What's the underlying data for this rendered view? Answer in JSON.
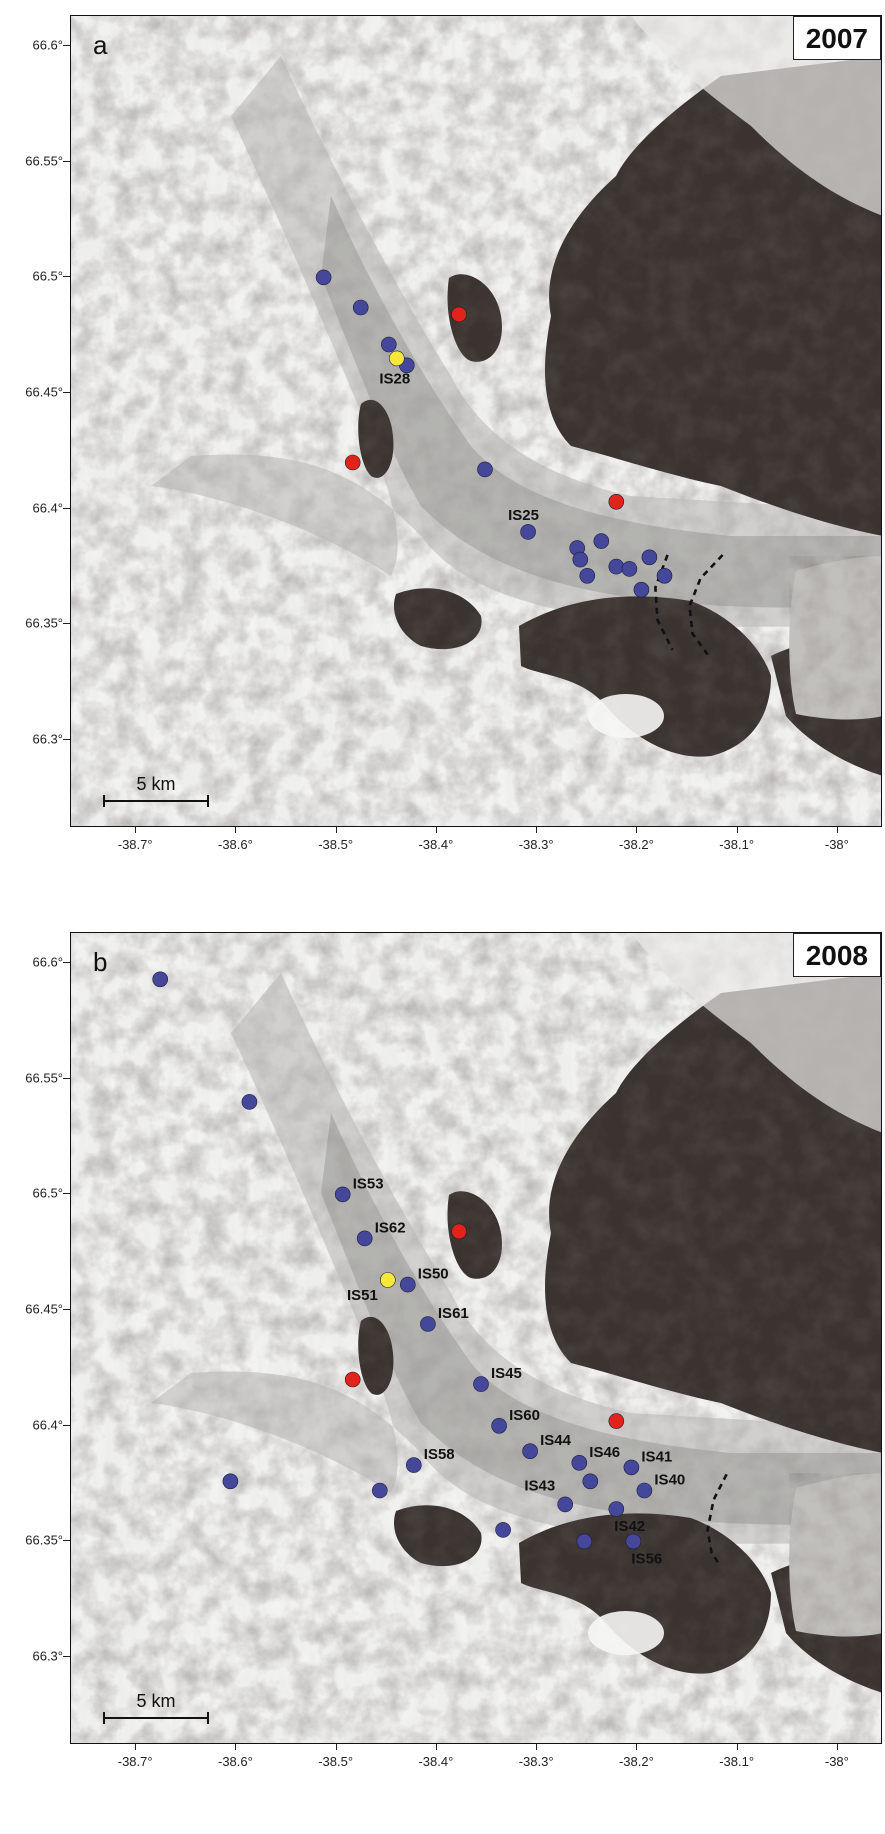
{
  "axes": {
    "lat_ticks": [
      {
        "value": 66.6,
        "label": "66.6°"
      },
      {
        "value": 66.55,
        "label": "66.55°"
      },
      {
        "value": 66.5,
        "label": "66.5°"
      },
      {
        "value": 66.45,
        "label": "66.45°"
      },
      {
        "value": 66.4,
        "label": "66.4°"
      },
      {
        "value": 66.35,
        "label": "66.35°"
      },
      {
        "value": 66.3,
        "label": "66.3°"
      }
    ],
    "lon_ticks": [
      {
        "value": -38.7,
        "label": "-38.7°"
      },
      {
        "value": -38.6,
        "label": "-38.6°"
      },
      {
        "value": -38.5,
        "label": "-38.5°"
      },
      {
        "value": -38.4,
        "label": "-38.4°"
      },
      {
        "value": -38.3,
        "label": "-38.3°"
      },
      {
        "value": -38.2,
        "label": "-38.2°"
      },
      {
        "value": -38.1,
        "label": "-38.1°"
      },
      {
        "value": -38.0,
        "label": "-38°"
      }
    ],
    "lat_range": [
      66.262,
      66.613
    ],
    "lon_range": [
      -38.765,
      -37.955
    ]
  },
  "colors": {
    "station": "#45489a",
    "reference_red": "#e2231a",
    "reference_yellow": "#f4e83a",
    "label": "#111111"
  },
  "panels": [
    {
      "letter": "a",
      "year": "2007",
      "scale_label": "5 km",
      "stations": [
        {
          "lon": -38.513,
          "lat": 66.5,
          "label": ""
        },
        {
          "lon": -38.476,
          "lat": 66.487,
          "label": ""
        },
        {
          "lon": -38.448,
          "lat": 66.471,
          "label": ""
        },
        {
          "lon": -38.43,
          "lat": 66.462,
          "label": ""
        },
        {
          "lon": -38.352,
          "lat": 66.417,
          "label": ""
        },
        {
          "lon": -38.309,
          "lat": 66.39,
          "label": "IS25"
        },
        {
          "lon": -38.26,
          "lat": 66.383,
          "label": ""
        },
        {
          "lon": -38.257,
          "lat": 66.378,
          "label": ""
        },
        {
          "lon": -38.236,
          "lat": 66.386,
          "label": ""
        },
        {
          "lon": -38.221,
          "lat": 66.375,
          "label": ""
        },
        {
          "lon": -38.25,
          "lat": 66.371,
          "label": ""
        },
        {
          "lon": -38.208,
          "lat": 66.374,
          "label": ""
        },
        {
          "lon": -38.188,
          "lat": 66.379,
          "label": ""
        },
        {
          "lon": -38.196,
          "lat": 66.365,
          "label": ""
        },
        {
          "lon": -38.173,
          "lat": 66.371,
          "label": ""
        }
      ],
      "reference_red": [
        {
          "lon": -38.378,
          "lat": 66.484
        },
        {
          "lon": -38.484,
          "lat": 66.42
        },
        {
          "lon": -38.221,
          "lat": 66.403
        }
      ],
      "reference_yellow": [
        {
          "lon": -38.44,
          "lat": 66.465,
          "label": "IS28"
        }
      ],
      "front_lines": [
        [
          [
            -38.17,
            66.38
          ],
          [
            -38.182,
            66.366
          ],
          [
            -38.18,
            66.352
          ],
          [
            -38.165,
            66.339
          ]
        ],
        [
          [
            -38.115,
            66.38
          ],
          [
            -38.137,
            66.37
          ],
          [
            -38.148,
            66.358
          ],
          [
            -38.145,
            66.346
          ],
          [
            -38.13,
            66.337
          ]
        ]
      ]
    },
    {
      "letter": "b",
      "year": "2008",
      "scale_label": "5 km",
      "stations": [
        {
          "lon": -38.676,
          "lat": 66.593,
          "label": ""
        },
        {
          "lon": -38.587,
          "lat": 66.54,
          "label": ""
        },
        {
          "lon": -38.494,
          "lat": 66.5,
          "label": "IS53"
        },
        {
          "lon": -38.472,
          "lat": 66.481,
          "label": "IS62"
        },
        {
          "lon": -38.429,
          "lat": 66.461,
          "label": "IS50"
        },
        {
          "lon": -38.409,
          "lat": 66.444,
          "label": "IS61"
        },
        {
          "lon": -38.356,
          "lat": 66.418,
          "label": "IS45"
        },
        {
          "lon": -38.338,
          "lat": 66.4,
          "label": "IS60"
        },
        {
          "lon": -38.307,
          "lat": 66.389,
          "label": "IS44"
        },
        {
          "lon": -38.258,
          "lat": 66.384,
          "label": "IS46"
        },
        {
          "lon": -38.206,
          "lat": 66.382,
          "label": "IS41"
        },
        {
          "lon": -38.423,
          "lat": 66.383,
          "label": "IS58"
        },
        {
          "lon": -38.606,
          "lat": 66.376,
          "label": ""
        },
        {
          "lon": -38.457,
          "lat": 66.372,
          "label": ""
        },
        {
          "lon": -38.247,
          "lat": 66.376,
          "label": ""
        },
        {
          "lon": -38.193,
          "lat": 66.372,
          "label": "IS40"
        },
        {
          "lon": -38.272,
          "lat": 66.366,
          "label": "IS43"
        },
        {
          "lon": -38.221,
          "lat": 66.364,
          "label": "IS42"
        },
        {
          "lon": -38.334,
          "lat": 66.355,
          "label": ""
        },
        {
          "lon": -38.253,
          "lat": 66.35,
          "label": ""
        },
        {
          "lon": -38.204,
          "lat": 66.35,
          "label": "IS56"
        }
      ],
      "reference_red": [
        {
          "lon": -38.378,
          "lat": 66.484
        },
        {
          "lon": -38.484,
          "lat": 66.42
        },
        {
          "lon": -38.221,
          "lat": 66.402
        }
      ],
      "reference_yellow": [
        {
          "lon": -38.449,
          "lat": 66.463,
          "label": "IS51"
        }
      ],
      "front_lines": [
        [
          [
            -38.111,
            66.379
          ],
          [
            -38.124,
            66.368
          ],
          [
            -38.13,
            66.355
          ],
          [
            -38.126,
            66.345
          ],
          [
            -38.118,
            66.34
          ]
        ]
      ]
    }
  ]
}
